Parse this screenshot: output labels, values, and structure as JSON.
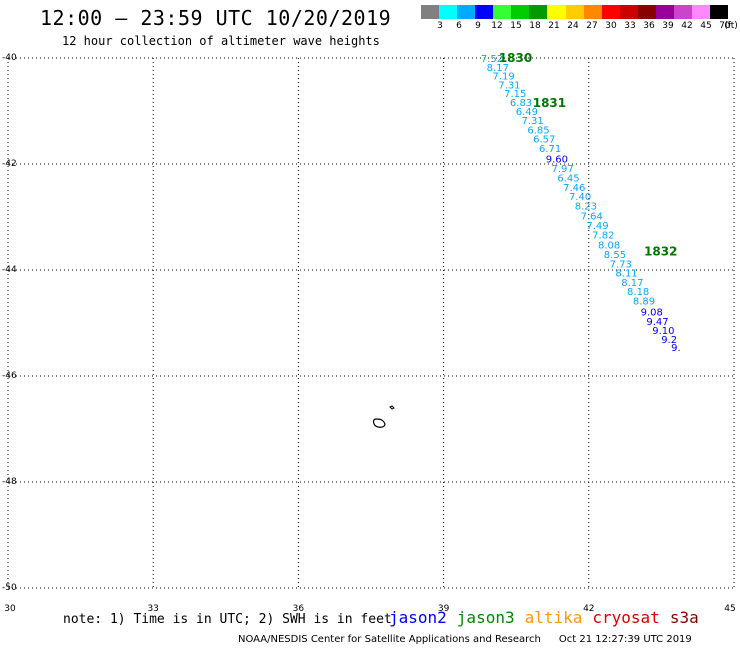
{
  "header": {
    "title": "12:00 – 23:59 UTC 10/20/2019",
    "subtitle": "12 hour collection of altimeter wave heights"
  },
  "scale": {
    "unit": "(ft)",
    "bins": [
      {
        "label": "3",
        "color": "#808080"
      },
      {
        "label": "6",
        "color": "#00ffff"
      },
      {
        "label": "9",
        "color": "#00aaff"
      },
      {
        "label": "12",
        "color": "#0000ff"
      },
      {
        "label": "15",
        "color": "#33ff33"
      },
      {
        "label": "18",
        "color": "#00cc00"
      },
      {
        "label": "21",
        "color": "#009900"
      },
      {
        "label": "24",
        "color": "#ffff00"
      },
      {
        "label": "27",
        "color": "#ffcc00"
      },
      {
        "label": "30",
        "color": "#ff8800"
      },
      {
        "label": "33",
        "color": "#ff0000"
      },
      {
        "label": "36",
        "color": "#cc0000"
      },
      {
        "label": "39",
        "color": "#880000"
      },
      {
        "label": "42",
        "color": "#990099"
      },
      {
        "label": "45",
        "color": "#cc44cc"
      },
      {
        "label": "70",
        "color": "#ff88ff"
      },
      {
        "label": "",
        "color": "#000000"
      }
    ]
  },
  "axes": {
    "lat_labels": [
      "-40",
      "-42",
      "-44",
      "-46",
      "-48",
      "-50"
    ],
    "lon_labels": [
      "30",
      "33",
      "36",
      "39",
      "42",
      "45"
    ]
  },
  "track": {
    "time_labels": [
      {
        "text": "1830",
        "lon": 40.1,
        "lat": -40.0
      },
      {
        "text": "1831",
        "lon": 40.8,
        "lat": -40.85
      },
      {
        "text": "1832",
        "lon": 43.1,
        "lat": -43.65
      }
    ],
    "points": [
      {
        "v": "7.52",
        "lon": 40.0,
        "lat": -40.0,
        "color": "#00aaff"
      },
      {
        "v": "8.17",
        "lon": 40.12,
        "lat": -40.17,
        "color": "#00aaff"
      },
      {
        "v": "7.19",
        "lon": 40.24,
        "lat": -40.33,
        "color": "#00aaff"
      },
      {
        "v": "7.31",
        "lon": 40.36,
        "lat": -40.5,
        "color": "#00aaff"
      },
      {
        "v": "7.15",
        "lon": 40.48,
        "lat": -40.66,
        "color": "#00aaff"
      },
      {
        "v": "6.83",
        "lon": 40.6,
        "lat": -40.83,
        "color": "#00aaff"
      },
      {
        "v": "6.49",
        "lon": 40.72,
        "lat": -41.0,
        "color": "#00aaff"
      },
      {
        "v": "7.31",
        "lon": 40.84,
        "lat": -41.17,
        "color": "#00aaff"
      },
      {
        "v": "6.85",
        "lon": 40.96,
        "lat": -41.35,
        "color": "#00aaff"
      },
      {
        "v": "6.57",
        "lon": 41.08,
        "lat": -41.52,
        "color": "#00aaff"
      },
      {
        "v": "6.71",
        "lon": 41.2,
        "lat": -41.7,
        "color": "#00aaff"
      },
      {
        "v": "9.60",
        "lon": 41.34,
        "lat": -41.9,
        "color": "#0000ff"
      },
      {
        "v": "7.97",
        "lon": 41.46,
        "lat": -42.08,
        "color": "#00aaff"
      },
      {
        "v": "6.45",
        "lon": 41.58,
        "lat": -42.25,
        "color": "#00aaff"
      },
      {
        "v": "7.46",
        "lon": 41.7,
        "lat": -42.43,
        "color": "#00aaff"
      },
      {
        "v": "7.40",
        "lon": 41.82,
        "lat": -42.6,
        "color": "#00aaff"
      },
      {
        "v": "8.23",
        "lon": 41.94,
        "lat": -42.78,
        "color": "#00aaff"
      },
      {
        "v": "7.64",
        "lon": 42.06,
        "lat": -42.97,
        "color": "#00aaff"
      },
      {
        "v": "7.49",
        "lon": 42.18,
        "lat": -43.15,
        "color": "#00aaff"
      },
      {
        "v": "7.82",
        "lon": 42.3,
        "lat": -43.33,
        "color": "#00aaff"
      },
      {
        "v": "8.08",
        "lon": 42.42,
        "lat": -43.52,
        "color": "#00aaff"
      },
      {
        "v": "8.55",
        "lon": 42.54,
        "lat": -43.7,
        "color": "#00aaff"
      },
      {
        "v": "7.73",
        "lon": 42.66,
        "lat": -43.88,
        "color": "#00aaff"
      },
      {
        "v": "8.11",
        "lon": 42.78,
        "lat": -44.05,
        "color": "#00aaff"
      },
      {
        "v": "8.17",
        "lon": 42.9,
        "lat": -44.23,
        "color": "#00aaff"
      },
      {
        "v": "8.18",
        "lon": 43.02,
        "lat": -44.4,
        "color": "#00aaff"
      },
      {
        "v": "8.89",
        "lon": 43.14,
        "lat": -44.58,
        "color": "#00aaff"
      },
      {
        "v": "9.08",
        "lon": 43.3,
        "lat": -44.78,
        "color": "#0000ff"
      },
      {
        "v": "9.47",
        "lon": 43.42,
        "lat": -44.96,
        "color": "#0000ff"
      },
      {
        "v": "9.10",
        "lon": 43.54,
        "lat": -45.13,
        "color": "#0000ff"
      },
      {
        "v": "9.2",
        "lon": 43.66,
        "lat": -45.3,
        "color": "#0000ff"
      },
      {
        "v": "9.",
        "lon": 43.8,
        "lat": -45.45,
        "color": "#0000ff"
      }
    ]
  },
  "footer": {
    "note": "note: 1) Time is in UTC; 2) SWH is in feet",
    "satellites": [
      {
        "name": "jason2",
        "color": "#0000ff"
      },
      {
        "name": "jason3",
        "color": "#008800"
      },
      {
        "name": "altika",
        "color": "#ff9900"
      },
      {
        "name": "cryosat",
        "color": "#dd0000"
      },
      {
        "name": "s3a",
        "color": "#880000"
      }
    ],
    "credit": "NOAA/NESDIS Center for Satellite Applications and Research",
    "timestamp": "Oct 21 12:27:39 UTC 2019"
  }
}
